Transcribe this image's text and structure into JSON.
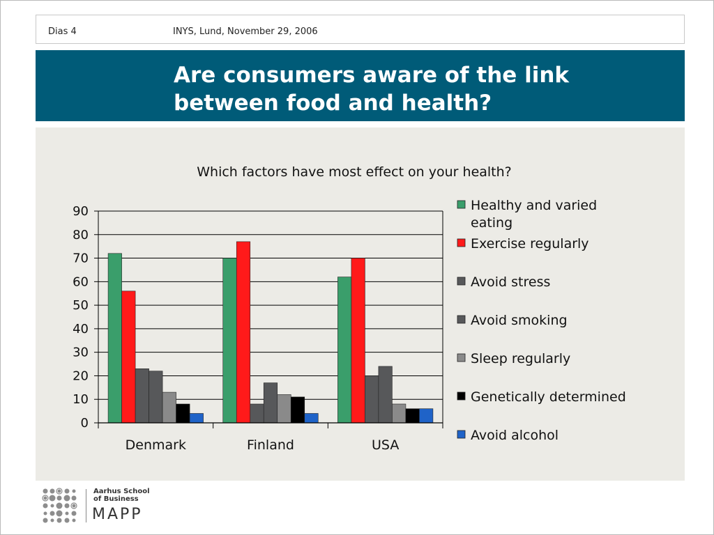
{
  "header": {
    "slide_number": "Dias 4",
    "event": "INYS, Lund, November 29, 2006"
  },
  "title": {
    "line1": "Are consumers aware of the link",
    "line2": "between food and health?"
  },
  "colors": {
    "title_band": "#005b78",
    "panel": "#ecebe6"
  },
  "chart_data": {
    "type": "bar",
    "title": "Which factors have most effect on your health?",
    "categories": [
      "Denmark",
      "Finland",
      "USA"
    ],
    "ylim": [
      0,
      90
    ],
    "yticks": [
      0,
      10,
      20,
      30,
      40,
      50,
      60,
      70,
      80,
      90
    ],
    "grid": true,
    "legend_position": "right",
    "series": [
      {
        "name": "Healthy and varied eating",
        "color": "#3a9e6b",
        "values": [
          72,
          70,
          62
        ]
      },
      {
        "name": "Exercise regularly",
        "color": "#ff1a1a",
        "values": [
          56,
          77,
          70
        ]
      },
      {
        "name": "Avoid stress",
        "color": "#57585a",
        "values": [
          23,
          8,
          20
        ]
      },
      {
        "name": "Avoid smoking",
        "color": "#57585a",
        "values": [
          22,
          17,
          24
        ]
      },
      {
        "name": "Sleep regularly",
        "color": "#8a8a8a",
        "values": [
          13,
          12,
          8
        ]
      },
      {
        "name": "Genetically determined",
        "color": "#000000",
        "values": [
          8,
          11,
          6
        ]
      },
      {
        "name": "Avoid alcohol",
        "color": "#1f63c8",
        "values": [
          4,
          4,
          6
        ]
      }
    ]
  },
  "logo": {
    "school_line1": "Aarhus School",
    "school_line2": "of Business",
    "name": "MAPP"
  }
}
